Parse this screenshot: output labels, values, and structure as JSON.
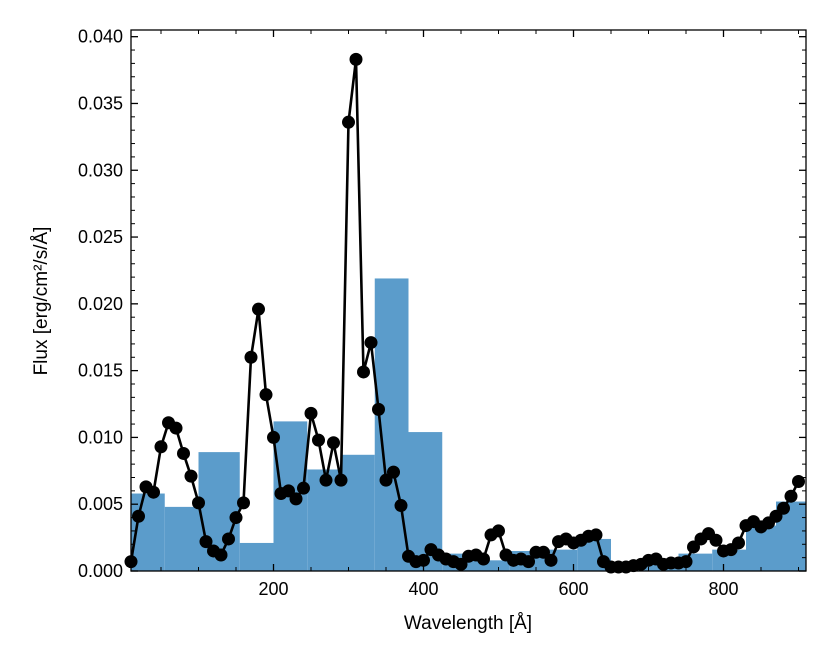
{
  "chart_data": {
    "type": "line",
    "title": "",
    "xlabel": "Wavelength [Å]",
    "ylabel": "Flux [erg/cm²/s/Å]",
    "xlim": [
      10,
      910
    ],
    "ylim": [
      0,
      0.0405
    ],
    "x_ticks": [
      200,
      400,
      600,
      800
    ],
    "x_tick_labels": [
      "200",
      "400",
      "600",
      "800"
    ],
    "y_ticks": [
      0,
      0.005,
      0.01,
      0.015,
      0.02,
      0.025,
      0.03,
      0.035,
      0.04
    ],
    "y_tick_labels": [
      "0.000",
      "0.005",
      "0.010",
      "0.015",
      "0.020",
      "0.025",
      "0.030",
      "0.035",
      "0.040"
    ],
    "grid": false,
    "colors": {
      "histogram": "#5b9ccb",
      "line": "#000000"
    },
    "histogram": {
      "edges": [
        10,
        55,
        100,
        155,
        200,
        245,
        290,
        335,
        380,
        425,
        470,
        515,
        560,
        605,
        650,
        695,
        740,
        785,
        830,
        870,
        910
      ],
      "values": [
        0.0058,
        0.0048,
        0.0089,
        0.0021,
        0.0112,
        0.0076,
        0.0087,
        0.0219,
        0.0104,
        0.0013,
        0.0008,
        0.0015,
        0.0016,
        0.0024,
        0.0003,
        0.0007,
        0.0013,
        0.0016,
        0.0034,
        0.0052
      ]
    },
    "series": [
      {
        "x": [
          10,
          20,
          30,
          40,
          50,
          60,
          70,
          80,
          90,
          100,
          110,
          120,
          130,
          140,
          150,
          160,
          170,
          180,
          190,
          200,
          210,
          220,
          230,
          240,
          250,
          260,
          270,
          280,
          290,
          300,
          310,
          320,
          330,
          340,
          350,
          360,
          370,
          380,
          390,
          400,
          410,
          420,
          430,
          440,
          450,
          460,
          470,
          480,
          490,
          500,
          510,
          520,
          530,
          540,
          550,
          560,
          570,
          580,
          590,
          600,
          610,
          620,
          630,
          640,
          650,
          660,
          670,
          680,
          690,
          700,
          710,
          720,
          730,
          740,
          750,
          760,
          770,
          780,
          790,
          800,
          810,
          820,
          830,
          840,
          850,
          860,
          870,
          880,
          890,
          900
        ],
        "y": [
          0.0007,
          0.0041,
          0.0063,
          0.0059,
          0.0093,
          0.0111,
          0.0107,
          0.0088,
          0.0071,
          0.0051,
          0.0022,
          0.0015,
          0.0012,
          0.0024,
          0.004,
          0.0051,
          0.016,
          0.0196,
          0.0132,
          0.01,
          0.0058,
          0.006,
          0.0054,
          0.0062,
          0.0118,
          0.0098,
          0.0068,
          0.0096,
          0.0068,
          0.0336,
          0.0383,
          0.0149,
          0.0171,
          0.0121,
          0.0068,
          0.0074,
          0.0049,
          0.0011,
          0.0007,
          0.0008,
          0.0016,
          0.0012,
          0.0009,
          0.0007,
          0.0005,
          0.0011,
          0.0012,
          0.0009,
          0.0027,
          0.003,
          0.0012,
          0.0008,
          0.0009,
          0.0007,
          0.0014,
          0.0014,
          0.0008,
          0.0022,
          0.0024,
          0.0021,
          0.0023,
          0.0026,
          0.0027,
          0.0007,
          0.0003,
          0.0003,
          0.0003,
          0.0004,
          0.0005,
          0.0008,
          0.0009,
          0.0005,
          0.0006,
          0.0006,
          0.0007,
          0.0018,
          0.0024,
          0.0028,
          0.0023,
          0.0015,
          0.0016,
          0.0021,
          0.0034,
          0.0037,
          0.0033,
          0.0036,
          0.0041,
          0.0047,
          0.0056,
          0.0067
        ]
      }
    ]
  }
}
